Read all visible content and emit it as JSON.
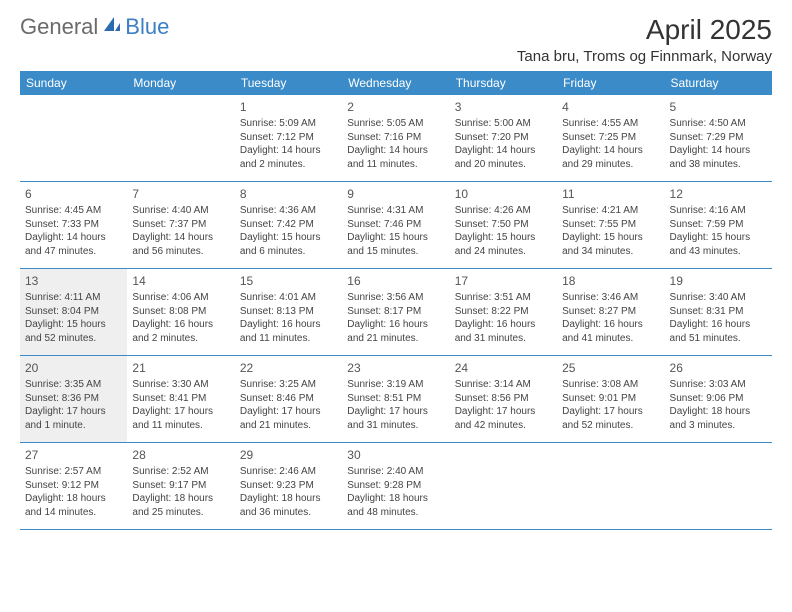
{
  "logo": {
    "text1": "General",
    "text2": "Blue",
    "color_gray": "#6b6b6b",
    "color_blue": "#3b7fc4"
  },
  "header": {
    "month_title": "April 2025",
    "location": "Tana bru, Troms og Finnmark, Norway"
  },
  "colors": {
    "header_bg": "#3b8bc9",
    "row_border": "#3b8bc9",
    "shaded_bg": "#efefef",
    "text": "#333333"
  },
  "weekdays": [
    "Sunday",
    "Monday",
    "Tuesday",
    "Wednesday",
    "Thursday",
    "Friday",
    "Saturday"
  ],
  "weeks": [
    [
      {
        "blank": true
      },
      {
        "blank": true
      },
      {
        "num": "1",
        "sunrise": "Sunrise: 5:09 AM",
        "sunset": "Sunset: 7:12 PM",
        "daylight": "Daylight: 14 hours and 2 minutes."
      },
      {
        "num": "2",
        "sunrise": "Sunrise: 5:05 AM",
        "sunset": "Sunset: 7:16 PM",
        "daylight": "Daylight: 14 hours and 11 minutes."
      },
      {
        "num": "3",
        "sunrise": "Sunrise: 5:00 AM",
        "sunset": "Sunset: 7:20 PM",
        "daylight": "Daylight: 14 hours and 20 minutes."
      },
      {
        "num": "4",
        "sunrise": "Sunrise: 4:55 AM",
        "sunset": "Sunset: 7:25 PM",
        "daylight": "Daylight: 14 hours and 29 minutes."
      },
      {
        "num": "5",
        "sunrise": "Sunrise: 4:50 AM",
        "sunset": "Sunset: 7:29 PM",
        "daylight": "Daylight: 14 hours and 38 minutes."
      }
    ],
    [
      {
        "num": "6",
        "sunrise": "Sunrise: 4:45 AM",
        "sunset": "Sunset: 7:33 PM",
        "daylight": "Daylight: 14 hours and 47 minutes."
      },
      {
        "num": "7",
        "sunrise": "Sunrise: 4:40 AM",
        "sunset": "Sunset: 7:37 PM",
        "daylight": "Daylight: 14 hours and 56 minutes."
      },
      {
        "num": "8",
        "sunrise": "Sunrise: 4:36 AM",
        "sunset": "Sunset: 7:42 PM",
        "daylight": "Daylight: 15 hours and 6 minutes."
      },
      {
        "num": "9",
        "sunrise": "Sunrise: 4:31 AM",
        "sunset": "Sunset: 7:46 PM",
        "daylight": "Daylight: 15 hours and 15 minutes."
      },
      {
        "num": "10",
        "sunrise": "Sunrise: 4:26 AM",
        "sunset": "Sunset: 7:50 PM",
        "daylight": "Daylight: 15 hours and 24 minutes."
      },
      {
        "num": "11",
        "sunrise": "Sunrise: 4:21 AM",
        "sunset": "Sunset: 7:55 PM",
        "daylight": "Daylight: 15 hours and 34 minutes."
      },
      {
        "num": "12",
        "sunrise": "Sunrise: 4:16 AM",
        "sunset": "Sunset: 7:59 PM",
        "daylight": "Daylight: 15 hours and 43 minutes."
      }
    ],
    [
      {
        "num": "13",
        "shaded": true,
        "sunrise": "Sunrise: 4:11 AM",
        "sunset": "Sunset: 8:04 PM",
        "daylight": "Daylight: 15 hours and 52 minutes."
      },
      {
        "num": "14",
        "sunrise": "Sunrise: 4:06 AM",
        "sunset": "Sunset: 8:08 PM",
        "daylight": "Daylight: 16 hours and 2 minutes."
      },
      {
        "num": "15",
        "sunrise": "Sunrise: 4:01 AM",
        "sunset": "Sunset: 8:13 PM",
        "daylight": "Daylight: 16 hours and 11 minutes."
      },
      {
        "num": "16",
        "sunrise": "Sunrise: 3:56 AM",
        "sunset": "Sunset: 8:17 PM",
        "daylight": "Daylight: 16 hours and 21 minutes."
      },
      {
        "num": "17",
        "sunrise": "Sunrise: 3:51 AM",
        "sunset": "Sunset: 8:22 PM",
        "daylight": "Daylight: 16 hours and 31 minutes."
      },
      {
        "num": "18",
        "sunrise": "Sunrise: 3:46 AM",
        "sunset": "Sunset: 8:27 PM",
        "daylight": "Daylight: 16 hours and 41 minutes."
      },
      {
        "num": "19",
        "sunrise": "Sunrise: 3:40 AM",
        "sunset": "Sunset: 8:31 PM",
        "daylight": "Daylight: 16 hours and 51 minutes."
      }
    ],
    [
      {
        "num": "20",
        "shaded": true,
        "sunrise": "Sunrise: 3:35 AM",
        "sunset": "Sunset: 8:36 PM",
        "daylight": "Daylight: 17 hours and 1 minute."
      },
      {
        "num": "21",
        "sunrise": "Sunrise: 3:30 AM",
        "sunset": "Sunset: 8:41 PM",
        "daylight": "Daylight: 17 hours and 11 minutes."
      },
      {
        "num": "22",
        "sunrise": "Sunrise: 3:25 AM",
        "sunset": "Sunset: 8:46 PM",
        "daylight": "Daylight: 17 hours and 21 minutes."
      },
      {
        "num": "23",
        "sunrise": "Sunrise: 3:19 AM",
        "sunset": "Sunset: 8:51 PM",
        "daylight": "Daylight: 17 hours and 31 minutes."
      },
      {
        "num": "24",
        "sunrise": "Sunrise: 3:14 AM",
        "sunset": "Sunset: 8:56 PM",
        "daylight": "Daylight: 17 hours and 42 minutes."
      },
      {
        "num": "25",
        "sunrise": "Sunrise: 3:08 AM",
        "sunset": "Sunset: 9:01 PM",
        "daylight": "Daylight: 17 hours and 52 minutes."
      },
      {
        "num": "26",
        "sunrise": "Sunrise: 3:03 AM",
        "sunset": "Sunset: 9:06 PM",
        "daylight": "Daylight: 18 hours and 3 minutes."
      }
    ],
    [
      {
        "num": "27",
        "sunrise": "Sunrise: 2:57 AM",
        "sunset": "Sunset: 9:12 PM",
        "daylight": "Daylight: 18 hours and 14 minutes."
      },
      {
        "num": "28",
        "sunrise": "Sunrise: 2:52 AM",
        "sunset": "Sunset: 9:17 PM",
        "daylight": "Daylight: 18 hours and 25 minutes."
      },
      {
        "num": "29",
        "sunrise": "Sunrise: 2:46 AM",
        "sunset": "Sunset: 9:23 PM",
        "daylight": "Daylight: 18 hours and 36 minutes."
      },
      {
        "num": "30",
        "sunrise": "Sunrise: 2:40 AM",
        "sunset": "Sunset: 9:28 PM",
        "daylight": "Daylight: 18 hours and 48 minutes."
      },
      {
        "blank": true
      },
      {
        "blank": true
      },
      {
        "blank": true
      }
    ]
  ]
}
